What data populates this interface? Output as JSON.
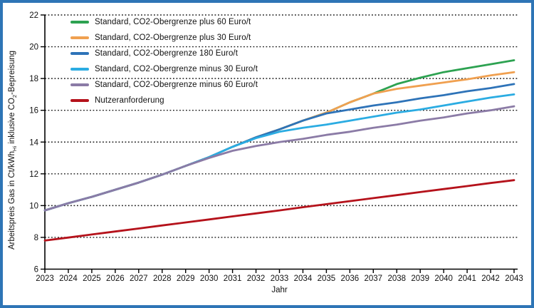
{
  "frame": {
    "border_color": "#2E75B6",
    "background": "#FFFFFF"
  },
  "chart_data": {
    "type": "line",
    "title": "",
    "xlabel": "Jahr",
    "ylabel": {
      "prefix": "Arbeitspreis Gas in Ct/kWh",
      "sub1": "Hi",
      "mid": " inklusive CO",
      "sub2": "2",
      "suffix": "-Bepreisung"
    },
    "x": [
      2023,
      2024,
      2025,
      2026,
      2027,
      2028,
      2029,
      2030,
      2031,
      2032,
      2033,
      2034,
      2035,
      2036,
      2037,
      2038,
      2039,
      2040,
      2041,
      2042,
      2043
    ],
    "xlim": [
      2023,
      2043
    ],
    "ylim": [
      6,
      22
    ],
    "yticks": [
      6,
      8,
      10,
      12,
      14,
      16,
      18,
      20,
      22
    ],
    "grid": "horizontal dotted",
    "legend_position": "top-left inside plot",
    "series": [
      {
        "key": "plus-60",
        "name": "Standard, CO2-Obergrenze plus 60 Euro/t",
        "color": "#2DA251",
        "values": [
          9.7,
          10.15,
          10.55,
          11.0,
          11.45,
          11.95,
          12.5,
          13.05,
          13.7,
          14.3,
          14.8,
          15.35,
          15.85,
          16.5,
          17.05,
          17.65,
          18.05,
          18.4,
          18.65,
          18.9,
          19.15
        ]
      },
      {
        "key": "plus-30",
        "name": "Standard, CO2-Obergrenze plus 30 Euro/t",
        "color": "#F0A050",
        "values": [
          9.7,
          10.15,
          10.55,
          11.0,
          11.45,
          11.95,
          12.5,
          13.05,
          13.7,
          14.3,
          14.8,
          15.35,
          15.85,
          16.5,
          17.05,
          17.35,
          17.55,
          17.75,
          17.95,
          18.2,
          18.4
        ]
      },
      {
        "key": "cap-180",
        "name": "Standard, CO2-Obergrenze 180 Euro/t",
        "color": "#2E73B8",
        "values": [
          9.7,
          10.15,
          10.55,
          11.0,
          11.45,
          11.95,
          12.5,
          13.05,
          13.7,
          14.3,
          14.8,
          15.35,
          15.8,
          16.05,
          16.3,
          16.5,
          16.75,
          16.95,
          17.2,
          17.4,
          17.65
        ]
      },
      {
        "key": "minus-30",
        "name": "Standard, CO2-Obergrenze minus 30 Euro/t",
        "color": "#2BACE2",
        "values": [
          9.7,
          10.15,
          10.55,
          11.0,
          11.45,
          11.95,
          12.5,
          13.05,
          13.7,
          14.25,
          14.65,
          14.9,
          15.1,
          15.35,
          15.6,
          15.85,
          16.05,
          16.3,
          16.55,
          16.8,
          17.0
        ]
      },
      {
        "key": "minus-60",
        "name": "Standard, CO2-Obergrenze minus 60 Euro/t",
        "color": "#8B7BA6",
        "values": [
          9.7,
          10.15,
          10.55,
          11.0,
          11.45,
          11.95,
          12.5,
          13.0,
          13.45,
          13.75,
          14.0,
          14.2,
          14.45,
          14.65,
          14.9,
          15.1,
          15.35,
          15.55,
          15.8,
          16.0,
          16.25
        ]
      },
      {
        "key": "nutzeranforderung",
        "name": "Nutzeranforderung",
        "color": "#B5121B",
        "values": [
          7.8,
          7.99,
          8.18,
          8.37,
          8.56,
          8.75,
          8.94,
          9.13,
          9.32,
          9.51,
          9.7,
          9.9,
          10.09,
          10.28,
          10.47,
          10.66,
          10.85,
          11.04,
          11.23,
          11.42,
          11.6
        ]
      }
    ]
  }
}
